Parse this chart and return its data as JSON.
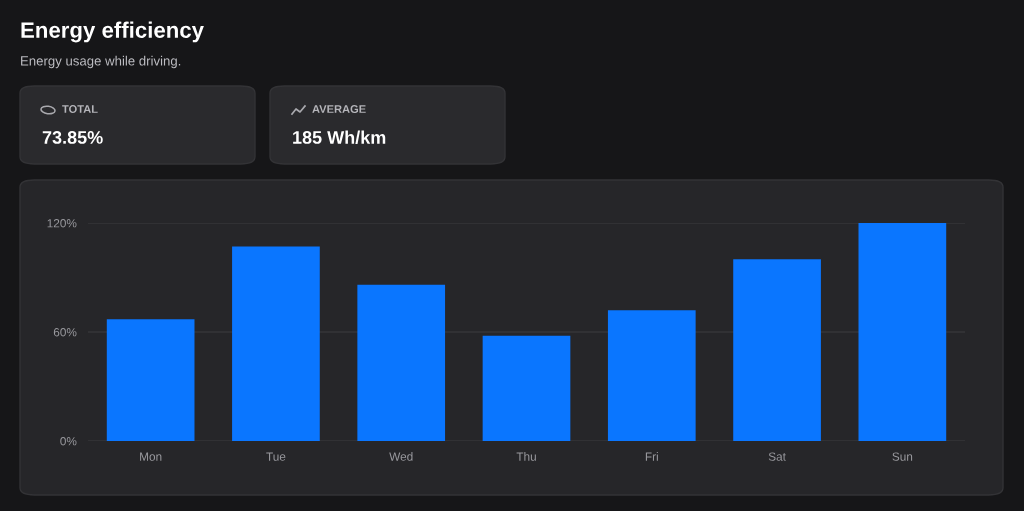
{
  "chart_data": [
    {
      "type": "other",
      "title": "Energy efficiency",
      "subtitle": "Energy usage while driving.",
      "annotations": [
        "TOTAL",
        "73.85%",
        "AVERAGE",
        "185 Wh/km"
      ]
    },
    {
      "type": "bar",
      "categories": [
        "Mon",
        "Tue",
        "Wed",
        "Thu",
        "Fri",
        "Sat",
        "Sun"
      ],
      "values": [
        67,
        107,
        86,
        58,
        72,
        100,
        120
      ],
      "color": "#0a76ff",
      "ylim": [
        0,
        120
      ],
      "yticks": [
        {
          "value": 0,
          "label": "0%"
        },
        {
          "value": 60,
          "label": "60%"
        },
        {
          "value": 120,
          "label": "120%"
        }
      ],
      "grid": "y"
    }
  ]
}
